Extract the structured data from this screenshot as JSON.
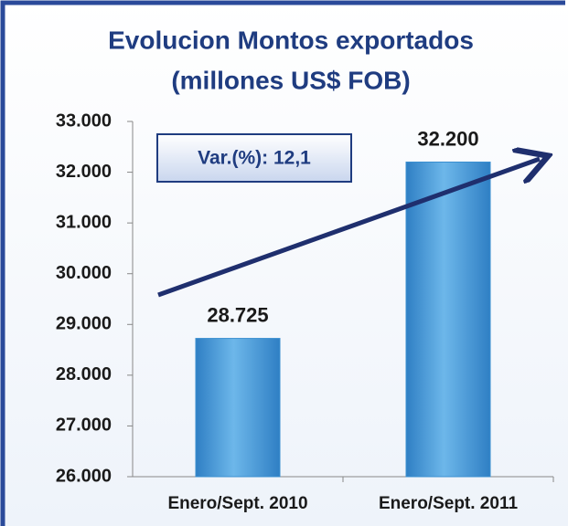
{
  "chart_data": {
    "type": "bar",
    "title": "Evolucion Montos exportados",
    "subtitle": "(millones US$ FOB)",
    "categories": [
      "Enero/Sept. 2010",
      "Enero/Sept. 2011"
    ],
    "values": [
      28725,
      32200
    ],
    "value_labels": [
      "28.725",
      "32.200"
    ],
    "color": "#3a8fd0",
    "ylim": [
      26000,
      33000
    ],
    "yticks": [
      {
        "value": 26000,
        "label": "26.000"
      },
      {
        "value": 27000,
        "label": "27.000"
      },
      {
        "value": 28000,
        "label": "28.000"
      },
      {
        "value": 29000,
        "label": "29.000"
      },
      {
        "value": 30000,
        "label": "30.000"
      },
      {
        "value": 31000,
        "label": "31.000"
      },
      {
        "value": 32000,
        "label": "32.000"
      },
      {
        "value": 33000,
        "label": "33.000"
      }
    ],
    "grid": false,
    "annotation": "Var.(%): 12,1"
  }
}
